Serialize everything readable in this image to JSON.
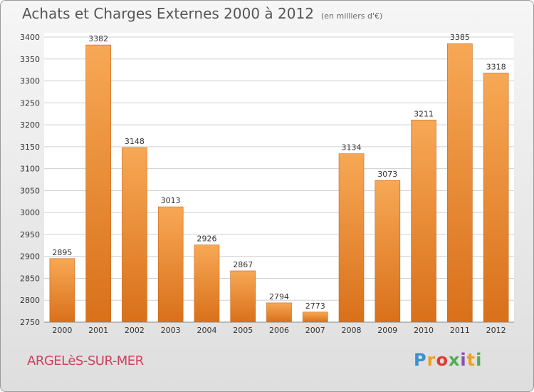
{
  "header": {
    "title": "Achats et Charges Externes 2000 à 2012",
    "unit": "(en milliers d'€)"
  },
  "footer": {
    "city": "ARGELèS-SUR-MER",
    "brand": "Proxiti"
  },
  "colors": {
    "bar_light": "#f7a855",
    "bar_dark": "#d9701a",
    "grid": "#cfcfcf"
  },
  "chart_data": {
    "type": "bar",
    "title": "Achats et Charges Externes 2000 à 2012",
    "subtitle": "(en milliers d'€)",
    "categories": [
      "2000",
      "2001",
      "2002",
      "2003",
      "2004",
      "2005",
      "2006",
      "2007",
      "2008",
      "2009",
      "2010",
      "2011",
      "2012"
    ],
    "values": [
      2895,
      3382,
      3148,
      3013,
      2926,
      2867,
      2794,
      2773,
      3134,
      3073,
      3211,
      3385,
      3318
    ],
    "ylim": [
      2750,
      3400
    ],
    "yticks": [
      2750,
      2800,
      2850,
      2900,
      2950,
      3000,
      3050,
      3100,
      3150,
      3200,
      3250,
      3300,
      3350,
      3400
    ],
    "grid": true,
    "data_labels": true
  }
}
